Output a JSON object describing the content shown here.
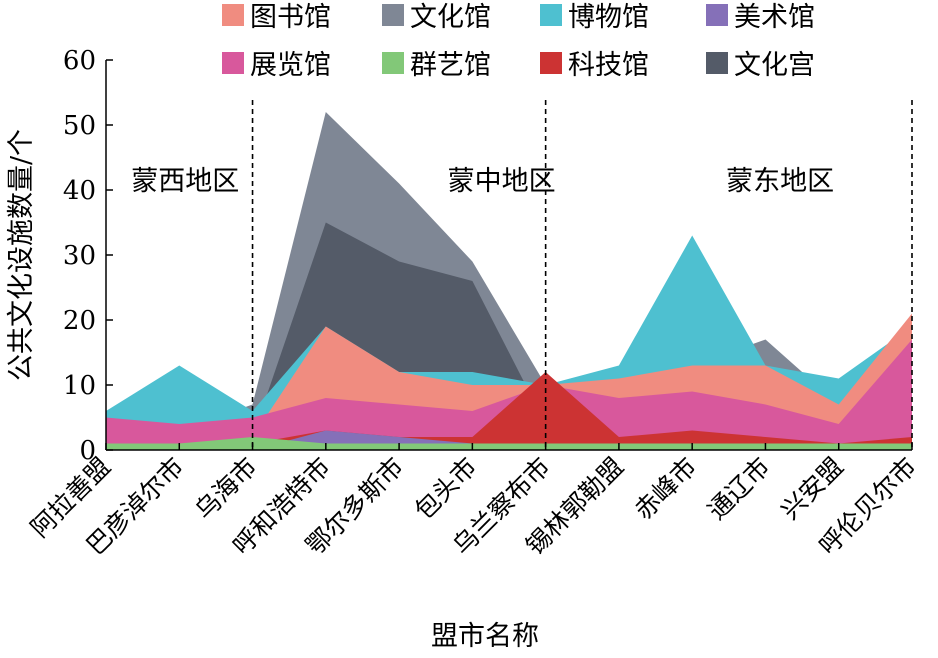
{
  "chart_data": {
    "type": "area",
    "xlabel": "盟市名称",
    "ylabel": "公共文化设施数量/个",
    "ylim": [
      0,
      60
    ],
    "yticks": [
      0,
      10,
      20,
      30,
      40,
      50,
      60
    ],
    "grid": false,
    "legend_position": "top",
    "categories": [
      "阿拉善盟",
      "巴彦淖尔市",
      "乌海市",
      "呼和浩特市",
      "鄂尔多斯市",
      "包头市",
      "乌兰察布市",
      "锡林郭勒盟",
      "赤峰市",
      "通辽市",
      "兴安盟",
      "呼伦贝尔市"
    ],
    "series": [
      {
        "name": "图书馆",
        "color": "#f08c80",
        "values": [
          1,
          3,
          2,
          19,
          12,
          10,
          10,
          11,
          13,
          13,
          7,
          21
        ]
      },
      {
        "name": "文化馆",
        "color": "#7f8795",
        "values": [
          1,
          3,
          7,
          52,
          41,
          29,
          10,
          11,
          13,
          17,
          7,
          17
        ]
      },
      {
        "name": "博物馆",
        "color": "#4ec0d0",
        "values": [
          6,
          13,
          6,
          19,
          12,
          12,
          10,
          13,
          33,
          13,
          11,
          19
        ]
      },
      {
        "name": "美术馆",
        "color": "#8570b8",
        "values": [
          0,
          0,
          0,
          3,
          2,
          1,
          1,
          1,
          1,
          1,
          0,
          1
        ]
      },
      {
        "name": "展览馆",
        "color": "#d8589c",
        "values": [
          5,
          4,
          5,
          8,
          7,
          6,
          10,
          8,
          9,
          7,
          4,
          17
        ]
      },
      {
        "name": "群艺馆",
        "color": "#82c878",
        "values": [
          1,
          1,
          2,
          1,
          1,
          1,
          1,
          1,
          1,
          1,
          1,
          1
        ]
      },
      {
        "name": "科技馆",
        "color": "#cc3333",
        "values": [
          0,
          1,
          1,
          3,
          2,
          2,
          12,
          2,
          3,
          2,
          1,
          2
        ]
      },
      {
        "name": "文化宫",
        "color": "#545b68",
        "values": [
          1,
          3,
          2,
          35,
          29,
          26,
          4,
          12,
          16,
          10,
          4,
          17
        ]
      }
    ],
    "regions": [
      {
        "label": "蒙西地区",
        "from": 0,
        "to": 2
      },
      {
        "label": "蒙中地区",
        "from": 3,
        "to": 6
      },
      {
        "label": "蒙东地区",
        "from": 7,
        "to": 11
      }
    ],
    "region_dividers_after": [
      2,
      6
    ]
  }
}
